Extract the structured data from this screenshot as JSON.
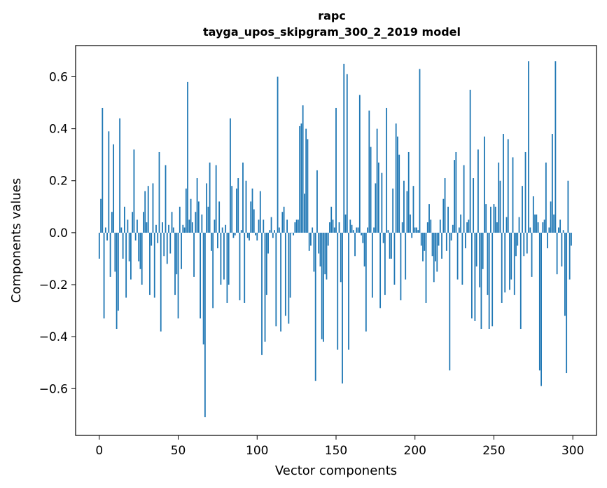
{
  "chart_data": {
    "type": "bar",
    "title_line1": "rapc",
    "title_line2": "tayga_upos_skipgram_300_2_2019 model",
    "xlabel": "Vector components",
    "ylabel": "Components values",
    "xlim": [
      -15,
      315
    ],
    "ylim": [
      -0.78,
      0.72
    ],
    "xticks": [
      0,
      50,
      100,
      150,
      200,
      250,
      300
    ],
    "xtick_labels": [
      "0",
      "50",
      "100",
      "150",
      "200",
      "250",
      "300"
    ],
    "yticks": [
      -0.6,
      -0.4,
      -0.2,
      0.0,
      0.2,
      0.4,
      0.6
    ],
    "ytick_labels": [
      "−0.6",
      "−0.4",
      "−0.2",
      "0.0",
      "0.2",
      "0.4",
      "0.6"
    ],
    "bar_color": "#1f77b4",
    "values": [
      -0.1,
      0.13,
      0.48,
      -0.33,
      0.02,
      -0.03,
      0.39,
      -0.17,
      0.08,
      0.34,
      -0.15,
      -0.37,
      -0.3,
      0.44,
      0.02,
      -0.1,
      0.1,
      -0.25,
      0.05,
      -0.11,
      -0.18,
      0.08,
      0.32,
      -0.03,
      0.05,
      -0.11,
      -0.14,
      -0.2,
      0.08,
      0.16,
      0.04,
      0.18,
      -0.24,
      -0.05,
      0.19,
      -0.25,
      0.03,
      -0.04,
      0.31,
      -0.38,
      0.04,
      -0.09,
      0.26,
      -0.12,
      0.03,
      -0.08,
      0.08,
      0.02,
      -0.24,
      -0.16,
      -0.33,
      0.1,
      -0.14,
      0.03,
      0.02,
      0.17,
      0.58,
      0.05,
      0.13,
      0.04,
      -0.17,
      0.08,
      0.21,
      0.12,
      -0.33,
      0.07,
      -0.43,
      -0.71,
      0.19,
      0.1,
      0.27,
      -0.07,
      -0.29,
      0.05,
      0.26,
      -0.06,
      0.12,
      -0.2,
      0.02,
      -0.18,
      0.03,
      -0.27,
      -0.2,
      0.44,
      0.18,
      -0.02,
      -0.01,
      0.17,
      0.21,
      -0.26,
      0.01,
      0.27,
      -0.27,
      0.2,
      -0.02,
      -0.03,
      0.12,
      0.17,
      0.09,
      -0.01,
      -0.03,
      0.05,
      0.16,
      -0.47,
      0.05,
      -0.42,
      -0.24,
      -0.08,
      0.01,
      0.06,
      -0.02,
      0.01,
      -0.36,
      0.6,
      0.02,
      -0.38,
      0.08,
      0.1,
      -0.32,
      0.05,
      -0.35,
      -0.25,
      0.0,
      -0.01,
      0.04,
      0.05,
      0.05,
      0.41,
      0.42,
      0.49,
      0.15,
      0.4,
      0.36,
      -0.07,
      -0.05,
      0.02,
      -0.15,
      -0.57,
      0.24,
      -0.08,
      -0.13,
      -0.41,
      -0.42,
      -0.16,
      -0.18,
      -0.05,
      0.04,
      0.1,
      0.05,
      0.02,
      0.48,
      -0.45,
      0.04,
      -0.19,
      -0.58,
      0.65,
      0.07,
      0.61,
      -0.45,
      0.05,
      0.03,
      0.01,
      -0.09,
      0.02,
      0.02,
      0.53,
      -0.01,
      -0.04,
      -0.13,
      -0.38,
      0.02,
      0.47,
      0.33,
      -0.25,
      0.02,
      0.19,
      0.4,
      0.27,
      -0.29,
      0.23,
      -0.04,
      -0.24,
      0.48,
      0.01,
      -0.1,
      -0.1,
      0.17,
      -0.2,
      0.42,
      0.37,
      0.3,
      -0.26,
      0.04,
      0.2,
      -0.18,
      0.16,
      0.31,
      0.07,
      -0.02,
      0.18,
      0.02,
      0.02,
      0.01,
      0.63,
      -0.05,
      -0.11,
      -0.07,
      -0.27,
      0.04,
      0.11,
      0.05,
      -0.09,
      -0.19,
      -0.11,
      -0.15,
      -0.05,
      0.05,
      -0.1,
      0.13,
      0.21,
      -0.07,
      0.1,
      -0.53,
      -0.03,
      0.03,
      0.28,
      0.31,
      -0.18,
      0.02,
      0.07,
      -0.2,
      0.26,
      -0.06,
      0.04,
      0.05,
      0.55,
      -0.33,
      0.21,
      -0.34,
      -0.13,
      0.32,
      -0.21,
      -0.37,
      -0.14,
      0.37,
      0.11,
      -0.24,
      -0.37,
      0.1,
      -0.36,
      0.11,
      0.1,
      0.04,
      0.27,
      0.2,
      -0.27,
      0.38,
      -0.23,
      0.06,
      0.36,
      -0.22,
      -0.18,
      0.29,
      -0.24,
      -0.09,
      -0.05,
      0.06,
      -0.37,
      0.18,
      -0.09,
      0.31,
      -0.08,
      0.66,
      0.02,
      -0.17,
      0.14,
      0.07,
      0.07,
      0.04,
      -0.53,
      -0.59,
      0.04,
      0.05,
      0.27,
      -0.06,
      0.02,
      0.12,
      0.38,
      0.07,
      0.66,
      -0.16,
      0.02,
      0.05,
      -0.13,
      0.01,
      -0.32,
      -0.54,
      0.2,
      -0.18,
      -0.05
    ]
  }
}
